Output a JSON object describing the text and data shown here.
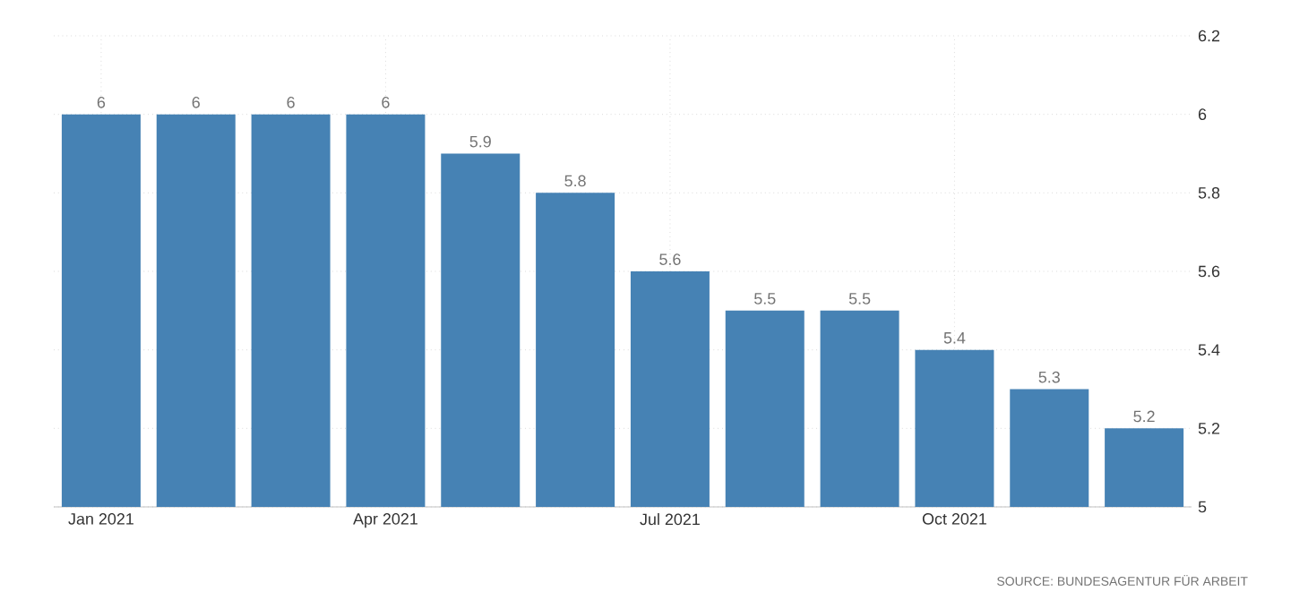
{
  "chart_data": {
    "type": "bar",
    "categories": [
      "Jan 2021",
      null,
      null,
      "Apr 2021",
      null,
      null,
      "Jul 2021",
      null,
      null,
      "Oct 2021",
      null,
      null
    ],
    "values": [
      6,
      6,
      6,
      6,
      5.9,
      5.8,
      5.6,
      5.5,
      5.5,
      5.4,
      5.3,
      5.2
    ],
    "color": "#4682b4",
    "ylim": [
      5,
      6.2
    ],
    "yticks": [
      5,
      5.2,
      5.4,
      5.6,
      5.8,
      6,
      6.2
    ],
    "grid": true,
    "data_labels": true,
    "annotations": [
      "SOURCE: BUNDESAGENTUR FÜR ARBEIT"
    ]
  }
}
